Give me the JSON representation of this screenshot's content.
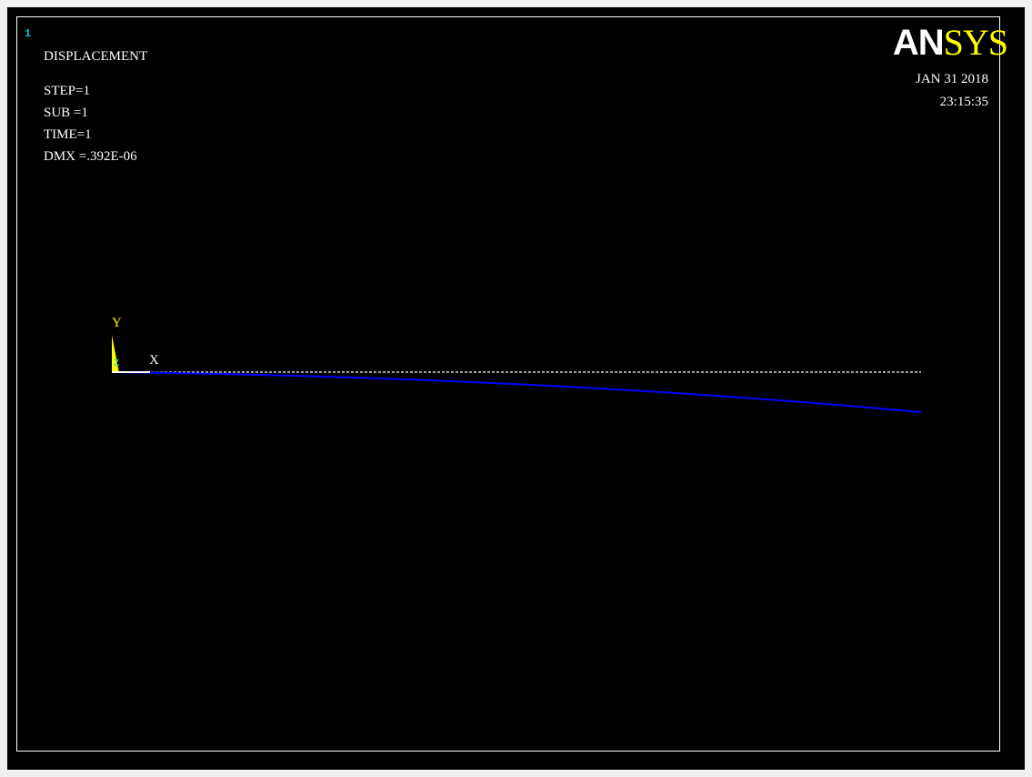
{
  "window": {
    "number": "1",
    "number_color": "#00c8c8"
  },
  "result": {
    "label": "DISPLACEMENT",
    "lines": [
      "STEP=1",
      "SUB =1",
      "TIME=1",
      "DMX =.392E-06"
    ]
  },
  "header": {
    "logo_primary": "AN",
    "logo_secondary": "SYS",
    "logo_primary_color": "#ffffff",
    "logo_secondary_color": "#ffff00",
    "date": "JAN 31 2018",
    "time": "23:15:35"
  },
  "triad": {
    "x_label": "X",
    "y_label": "Y",
    "z_label": "Z",
    "x_color": "#ffffff",
    "y_color": "#ffff00",
    "z_color": "#00c8c8"
  },
  "plot": {
    "undeformed_color": "#ffffff",
    "deformed_color": "#0000ff",
    "background_color": "#000000",
    "text_color": "#ffffff"
  }
}
